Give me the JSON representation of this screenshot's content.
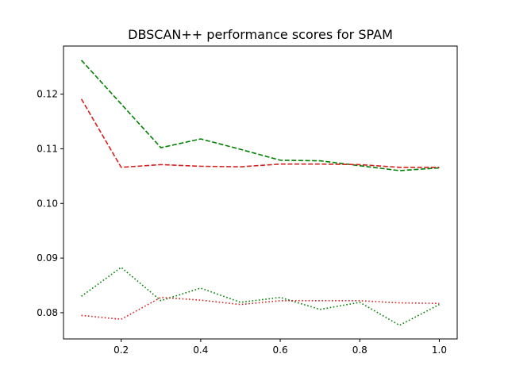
{
  "chart_data": {
    "type": "line",
    "title": "DBSCAN++ performance scores for SPAM",
    "xlabel": "",
    "ylabel": "",
    "xlim": [
      0.055,
      1.045
    ],
    "ylim": [
      0.0752,
      0.1288
    ],
    "x_ticks": [
      0.2,
      0.4,
      0.6,
      0.8,
      1.0
    ],
    "x_tick_labels": [
      "0.2",
      "0.4",
      "0.6",
      "0.8",
      "1.0"
    ],
    "y_ticks": [
      0.08,
      0.09,
      0.1,
      0.11,
      0.12
    ],
    "y_tick_labels": [
      "0.08",
      "0.09",
      "0.10",
      "0.11",
      "0.12"
    ],
    "grid": false,
    "legend": "none",
    "x": [
      0.1,
      0.2,
      0.3,
      0.4,
      0.5,
      0.6,
      0.7,
      0.8,
      0.9,
      1.0
    ],
    "series": [
      {
        "color": "#008000",
        "linestyle": "dashed",
        "values": [
          0.1262,
          0.1182,
          0.1102,
          0.1118,
          0.1099,
          0.1079,
          0.1078,
          0.1069,
          0.106,
          0.1065
        ]
      },
      {
        "color": "#d62020",
        "linestyle": "dashed",
        "values": [
          0.1191,
          0.1066,
          0.1071,
          0.1068,
          0.1067,
          0.1072,
          0.1072,
          0.1071,
          0.1066,
          0.1066
        ]
      },
      {
        "color": "#008000",
        "linestyle": "dotted",
        "values": [
          0.083,
          0.0883,
          0.0822,
          0.0845,
          0.0819,
          0.0828,
          0.0806,
          0.0819,
          0.0777,
          0.0815
        ]
      },
      {
        "color": "#d62020",
        "linestyle": "dotted",
        "values": [
          0.0795,
          0.0788,
          0.0828,
          0.0823,
          0.0815,
          0.0822,
          0.0822,
          0.0822,
          0.0818,
          0.0817
        ]
      }
    ]
  }
}
